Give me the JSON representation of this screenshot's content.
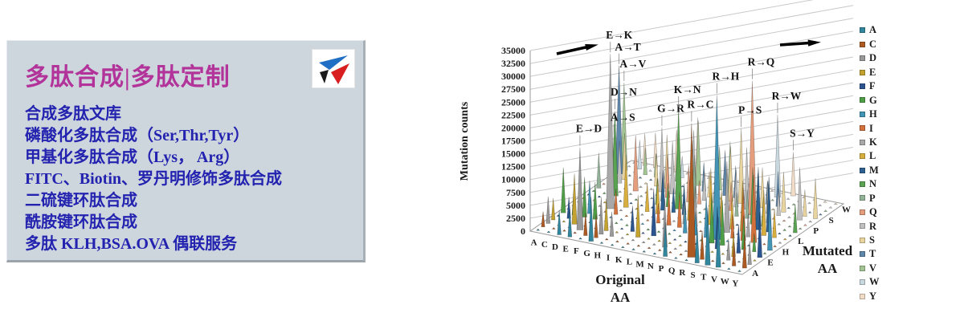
{
  "panel": {
    "title": "多肽合成|多肽定制",
    "title_color": "#B23399",
    "text_color": "#2323B0",
    "background": "#CED6DD",
    "services": [
      "合成多肽文库",
      "磷酸化多肽合成（Ser,Thr,Tyr）",
      "甲基化多肽合成（Lys， Arg）",
      "FITC、Biotin、罗丹明修饰多肽合成",
      "二硫键环肽合成",
      "酰胺键环肽合成",
      "多肽 KLH,BSA.OVA 偶联服务"
    ],
    "logo_colors": {
      "blue": "#1F6FC4",
      "red": "#D81E1E",
      "black": "#1A1A1A"
    }
  },
  "chart_data": {
    "type": "bar3d",
    "title": "",
    "ylabel": "Mutation counts",
    "xlabel": "Original AA",
    "zlabel": "Mutated AA",
    "ylim": [
      0,
      35000
    ],
    "ytick_step": 2500,
    "grid": true,
    "legend_position": "right",
    "x_categories": [
      "A",
      "C",
      "D",
      "E",
      "F",
      "G",
      "H",
      "I",
      "K",
      "L",
      "M",
      "N",
      "P",
      "Q",
      "R",
      "S",
      "T",
      "V",
      "W",
      "Y"
    ],
    "z_categories": [
      "A",
      "C",
      "D",
      "E",
      "F",
      "G",
      "H",
      "I",
      "K",
      "L",
      "M",
      "N",
      "P",
      "Q",
      "R",
      "S",
      "T",
      "V",
      "W",
      "Y"
    ],
    "z_shown_labels": [
      "A",
      "E",
      "H",
      "L",
      "P",
      "S",
      "W"
    ],
    "series_colors": {
      "A": "#31859C",
      "C": "#AC5A21",
      "D": "#999999",
      "E": "#C3A230",
      "F": "#2C5590",
      "G": "#4F9E47",
      "H": "#4293B4",
      "I": "#D2713B",
      "K": "#A8A8A8",
      "L": "#D8AE3E",
      "M": "#2E618F",
      "N": "#5AA352",
      "P": "#93B398",
      "Q": "#E49E7E",
      "R": "#C0C0C0",
      "S": "#E8D49E",
      "T": "#5F87A9",
      "V": "#A2C492",
      "W": "#C9D7DF",
      "Y": "#F1DDC7"
    },
    "baseline_value": 300,
    "spikes": [
      [
        "E",
        "K",
        30000,
        "E→K"
      ],
      [
        "A",
        "T",
        21000,
        "A→T"
      ],
      [
        "A",
        "V",
        17000,
        "A→V"
      ],
      [
        "R",
        "Q",
        26000,
        "R→Q"
      ],
      [
        "R",
        "H",
        28000,
        "R→H"
      ],
      [
        "D",
        "N",
        16500,
        "D→N"
      ],
      [
        "K",
        "N",
        19500,
        "K→N"
      ],
      [
        "R",
        "C",
        26000,
        "R→C"
      ],
      [
        "R",
        "W",
        16000,
        "R→W"
      ],
      [
        "G",
        "R",
        12500,
        "G→R"
      ],
      [
        "P",
        "S",
        14500,
        "P→S"
      ],
      [
        "A",
        "S",
        8000,
        "A→S"
      ],
      [
        "E",
        "D",
        16000,
        "E→D"
      ],
      [
        "S",
        "Y",
        8500,
        "S→Y"
      ],
      [
        "A",
        "C",
        3000
      ],
      [
        "A",
        "D",
        5200
      ],
      [
        "A",
        "E",
        4200
      ],
      [
        "A",
        "G",
        8800
      ],
      [
        "A",
        "P",
        6800
      ],
      [
        "C",
        "F",
        4200
      ],
      [
        "C",
        "G",
        5200
      ],
      [
        "C",
        "R",
        8200
      ],
      [
        "C",
        "S",
        9000
      ],
      [
        "C",
        "W",
        5600
      ],
      [
        "C",
        "Y",
        6200
      ],
      [
        "D",
        "A",
        4800
      ],
      [
        "D",
        "E",
        9800
      ],
      [
        "D",
        "G",
        7800
      ],
      [
        "D",
        "H",
        6400
      ],
      [
        "D",
        "V",
        5200
      ],
      [
        "D",
        "Y",
        6800
      ],
      [
        "E",
        "A",
        5400
      ],
      [
        "E",
        "G",
        7200
      ],
      [
        "E",
        "Q",
        10800
      ],
      [
        "E",
        "V",
        4600
      ],
      [
        "F",
        "C",
        4400
      ],
      [
        "F",
        "I",
        5000
      ],
      [
        "F",
        "L",
        10200
      ],
      [
        "F",
        "S",
        6200
      ],
      [
        "F",
        "V",
        4200
      ],
      [
        "F",
        "Y",
        8200
      ],
      [
        "G",
        "A",
        8600
      ],
      [
        "G",
        "C",
        4600
      ],
      [
        "G",
        "D",
        7200
      ],
      [
        "G",
        "E",
        6200
      ],
      [
        "G",
        "S",
        10400
      ],
      [
        "G",
        "V",
        5800
      ],
      [
        "G",
        "W",
        4200
      ],
      [
        "H",
        "D",
        4800
      ],
      [
        "H",
        "L",
        5600
      ],
      [
        "H",
        "N",
        5200
      ],
      [
        "H",
        "P",
        4400
      ],
      [
        "H",
        "Q",
        8400
      ],
      [
        "H",
        "R",
        10200
      ],
      [
        "H",
        "Y",
        11400
      ],
      [
        "I",
        "F",
        5000
      ],
      [
        "I",
        "L",
        6800
      ],
      [
        "I",
        "M",
        7800
      ],
      [
        "I",
        "N",
        4600
      ],
      [
        "I",
        "T",
        9400
      ],
      [
        "I",
        "V",
        12600
      ],
      [
        "K",
        "E",
        8200
      ],
      [
        "K",
        "I",
        3800
      ],
      [
        "K",
        "M",
        4800
      ],
      [
        "K",
        "Q",
        7200
      ],
      [
        "K",
        "R",
        13200
      ],
      [
        "K",
        "T",
        5600
      ],
      [
        "L",
        "F",
        9200
      ],
      [
        "L",
        "I",
        6600
      ],
      [
        "L",
        "M",
        6000
      ],
      [
        "L",
        "P",
        10200
      ],
      [
        "L",
        "Q",
        4600
      ],
      [
        "L",
        "R",
        5600
      ],
      [
        "L",
        "S",
        5000
      ],
      [
        "L",
        "V",
        8400
      ],
      [
        "L",
        "W",
        4200
      ],
      [
        "M",
        "I",
        6800
      ],
      [
        "M",
        "K",
        4600
      ],
      [
        "M",
        "L",
        7800
      ],
      [
        "M",
        "R",
        4200
      ],
      [
        "M",
        "T",
        8800
      ],
      [
        "M",
        "V",
        9800
      ],
      [
        "N",
        "D",
        9400
      ],
      [
        "N",
        "H",
        5600
      ],
      [
        "N",
        "I",
        4600
      ],
      [
        "N",
        "K",
        7800
      ],
      [
        "N",
        "S",
        10600
      ],
      [
        "N",
        "T",
        6200
      ],
      [
        "N",
        "Y",
        5200
      ],
      [
        "P",
        "A",
        6600
      ],
      [
        "P",
        "H",
        4600
      ],
      [
        "P",
        "L",
        11000
      ],
      [
        "P",
        "Q",
        5600
      ],
      [
        "P",
        "R",
        7200
      ],
      [
        "P",
        "T",
        5200
      ],
      [
        "Q",
        "E",
        6800
      ],
      [
        "Q",
        "H",
        7800
      ],
      [
        "Q",
        "K",
        6200
      ],
      [
        "Q",
        "L",
        7200
      ],
      [
        "Q",
        "P",
        4600
      ],
      [
        "Q",
        "R",
        12000
      ],
      [
        "R",
        "G",
        9800
      ],
      [
        "R",
        "K",
        13800
      ],
      [
        "R",
        "L",
        6600
      ],
      [
        "R",
        "P",
        5600
      ],
      [
        "R",
        "S",
        7800
      ],
      [
        "R",
        "T",
        4600
      ],
      [
        "S",
        "A",
        7200
      ],
      [
        "S",
        "C",
        5600
      ],
      [
        "S",
        "F",
        8200
      ],
      [
        "S",
        "G",
        8800
      ],
      [
        "S",
        "I",
        4600
      ],
      [
        "S",
        "L",
        9800
      ],
      [
        "S",
        "N",
        11000
      ],
      [
        "S",
        "P",
        9200
      ],
      [
        "S",
        "R",
        6200
      ],
      [
        "S",
        "T",
        6800
      ],
      [
        "T",
        "A",
        11200
      ],
      [
        "T",
        "I",
        10200
      ],
      [
        "T",
        "K",
        4600
      ],
      [
        "T",
        "M",
        12200
      ],
      [
        "T",
        "N",
        5600
      ],
      [
        "T",
        "P",
        6600
      ],
      [
        "T",
        "R",
        5200
      ],
      [
        "T",
        "S",
        7800
      ],
      [
        "V",
        "A",
        9800
      ],
      [
        "V",
        "D",
        4200
      ],
      [
        "V",
        "E",
        4800
      ],
      [
        "V",
        "F",
        5600
      ],
      [
        "V",
        "G",
        6600
      ],
      [
        "V",
        "I",
        13200
      ],
      [
        "V",
        "L",
        8800
      ],
      [
        "V",
        "M",
        10800
      ],
      [
        "W",
        "C",
        4600
      ],
      [
        "W",
        "G",
        3600
      ],
      [
        "W",
        "L",
        5600
      ],
      [
        "W",
        "R",
        10200
      ],
      [
        "W",
        "S",
        5200
      ],
      [
        "Y",
        "C",
        6600
      ],
      [
        "Y",
        "D",
        4600
      ],
      [
        "Y",
        "F",
        8800
      ],
      [
        "Y",
        "H",
        9800
      ],
      [
        "Y",
        "N",
        5600
      ],
      [
        "Y",
        "S",
        7800
      ]
    ]
  }
}
